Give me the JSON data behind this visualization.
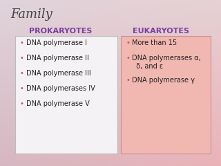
{
  "title": "Family",
  "title_fontsize": 13,
  "title_color": "#444444",
  "title_font": "serif",
  "header_color": "#7B3FA0",
  "header_left": "PROKARYOTES",
  "header_right": "EUKARYOTES",
  "header_fontsize": 8,
  "prokaryotes_box_facecolor": "#f4f2f4",
  "prokaryotes_box_edgecolor": "#bbbbbb",
  "eukaryotes_box_facecolor": "#f0b8b0",
  "eukaryotes_box_edgecolor": "#cc9090",
  "prokaryotes_items": [
    "DNA polymerase I",
    "DNA polymerase II",
    "DNA polymerase III",
    "DNA polymerases IV",
    "DNA polymerase V"
  ],
  "eukaryotes_items": [
    "More than 15",
    "DNA polymerases α,\n  δ, and ε",
    "DNA polymerase γ"
  ],
  "item_fontsize": 7,
  "item_color": "#222222",
  "bullet": "•",
  "bullet_color": "#cc5555",
  "bg_colors": [
    "#d0b8c0",
    "#e8c8c8",
    "#e0b0b8",
    "#d8c0c8"
  ],
  "bg_gradient_left": "#c8b8c8",
  "bg_gradient_right": "#e8a898"
}
